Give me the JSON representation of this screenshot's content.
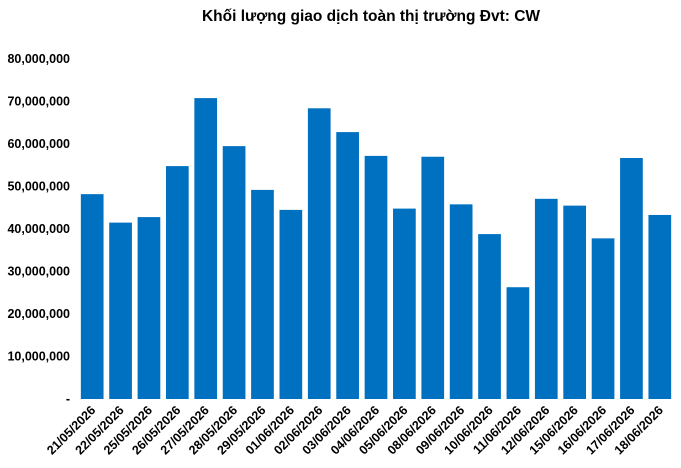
{
  "chart_data": {
    "type": "bar",
    "title": "Khối lượng giao dịch toàn thị trường Đvt: CW",
    "xlabel": "",
    "ylabel": "",
    "categories": [
      "21/05/2026",
      "22/05/2026",
      "25/05/2026",
      "26/05/2026",
      "27/05/2026",
      "28/05/2026",
      "29/05/2026",
      "01/06/2026",
      "02/06/2026",
      "03/06/2026",
      "04/06/2026",
      "05/06/2026",
      "08/06/2026",
      "09/06/2026",
      "10/06/2026",
      "11/06/2026",
      "12/06/2026",
      "15/06/2026",
      "16/06/2026",
      "17/06/2026",
      "18/06/2026"
    ],
    "values": [
      48200000,
      41500000,
      42800000,
      54800000,
      70800000,
      59500000,
      49200000,
      44500000,
      68400000,
      62800000,
      57200000,
      44800000,
      57000000,
      45800000,
      38800000,
      26300000,
      47100000,
      45500000,
      37800000,
      56700000,
      43300000
    ],
    "ylim": [
      0,
      80000000
    ],
    "y_ticks": [
      "-",
      "10,000,000",
      "20,000,000",
      "30,000,000",
      "40,000,000",
      "50,000,000",
      "60,000,000",
      "70,000,000",
      "80,000,000"
    ],
    "y_tick_values": [
      0,
      10000000,
      20000000,
      30000000,
      40000000,
      50000000,
      60000000,
      70000000,
      80000000
    ],
    "bar_color": "#0070C0",
    "grid": false,
    "legend": "none"
  }
}
